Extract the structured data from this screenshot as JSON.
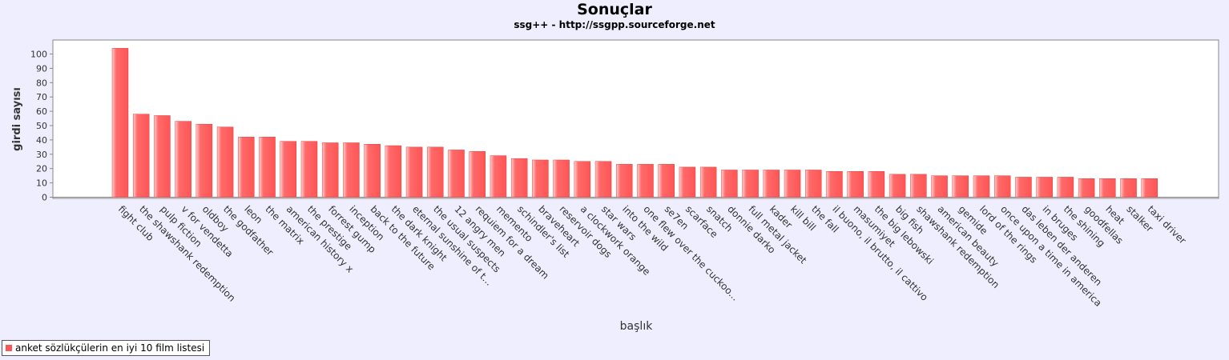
{
  "chart_data": {
    "type": "bar",
    "title": "Sonuçlar",
    "subtitle": "ssg++ - http://ssgpp.sourceforge.net",
    "xlabel": "başlık",
    "ylabel": "girdi sayısı",
    "ylim": [
      0,
      110
    ],
    "yticks": [
      0,
      10,
      20,
      30,
      40,
      50,
      60,
      70,
      80,
      90,
      100
    ],
    "grid": false,
    "legend_placement": "bottom-left",
    "color": "#ff5555",
    "categories": [
      "fight club",
      "the shawshank redemption",
      "pulp fiction",
      "v for vendetta",
      "oldboy",
      "the godfather",
      "leon",
      "the matrix",
      "american history x",
      "the prestige",
      "forrest gump",
      "inception",
      "back to the future",
      "the dark knight",
      "eternal sunshine of t...",
      "the usual suspects",
      "12 angry men",
      "requiem for a dream",
      "memento",
      "schindler's list",
      "braveheart",
      "reservoir dogs",
      "a clockwork orange",
      "star wars",
      "into the wild",
      "one flew over the cuckoo...",
      "se7en",
      "scarface",
      "snatch",
      "donnie darko",
      "full metal jacket",
      "kader",
      "kill bill",
      "the fall",
      "il buono, il brutto, il cattivo",
      "masumiyet",
      "the big lebowski",
      "big fish",
      "shawshank redemption",
      "american beauty",
      "gemide",
      "lord of the rings",
      "once upon a time in america",
      "das leben der anderen",
      "in bruges",
      "the shining",
      "goodfellas",
      "heat",
      "stalker",
      "taxi driver"
    ],
    "series": [
      {
        "name": "anket sözlükçülerin en iyi 10 film listesi",
        "values": [
          104,
          58,
          57,
          53,
          51,
          49,
          42,
          42,
          39,
          39,
          38,
          38,
          37,
          36,
          35,
          35,
          33,
          32,
          29,
          27,
          26,
          26,
          25,
          25,
          23,
          23,
          23,
          21,
          21,
          19,
          19,
          19,
          19,
          19,
          18,
          18,
          18,
          16,
          16,
          15,
          15,
          15,
          15,
          14,
          14,
          14,
          13,
          13,
          13,
          13
        ]
      }
    ]
  }
}
